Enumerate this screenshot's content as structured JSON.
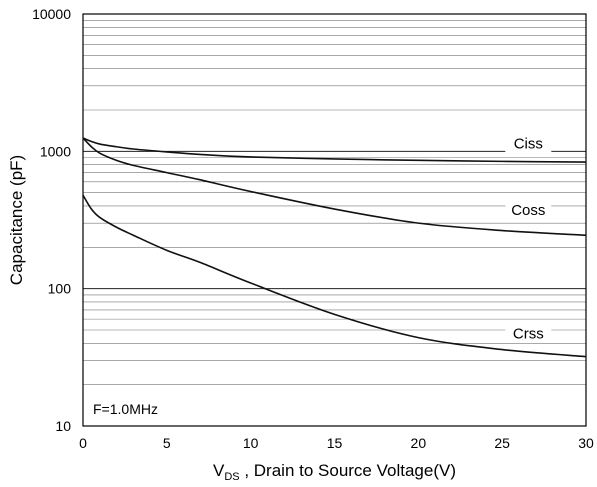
{
  "chart_data": {
    "type": "line",
    "title": "",
    "xlabel_main": "V",
    "xlabel_sub": "DS",
    "xlabel_rest": " , Drain to Source Voltage(V)",
    "ylabel": "Capacitance (pF)",
    "xlim": [
      0,
      30
    ],
    "ylim": [
      10,
      10000
    ],
    "yscale": "log",
    "grid": true,
    "xticks": [
      0,
      5,
      10,
      15,
      20,
      25,
      30
    ],
    "yticks": [
      10,
      100,
      1000,
      10000
    ],
    "annotation": "F=1.0MHz",
    "series": [
      {
        "name": "Ciss",
        "x": [
          0,
          0.5,
          1,
          2,
          3,
          5,
          7,
          10,
          15,
          20,
          25,
          30
        ],
        "y": [
          1250,
          1180,
          1130,
          1080,
          1040,
          990,
          950,
          910,
          880,
          860,
          845,
          835
        ]
      },
      {
        "name": "Coss",
        "x": [
          0,
          0.5,
          1,
          2,
          3,
          5,
          7,
          10,
          15,
          20,
          25,
          30
        ],
        "y": [
          1250,
          1080,
          970,
          860,
          790,
          700,
          620,
          510,
          380,
          300,
          265,
          245
        ]
      },
      {
        "name": "Crss",
        "x": [
          0,
          0.5,
          1,
          2,
          3,
          5,
          7,
          10,
          15,
          20,
          25,
          30
        ],
        "y": [
          480,
          380,
          330,
          280,
          245,
          190,
          155,
          110,
          65,
          44,
          36,
          32
        ]
      }
    ]
  }
}
